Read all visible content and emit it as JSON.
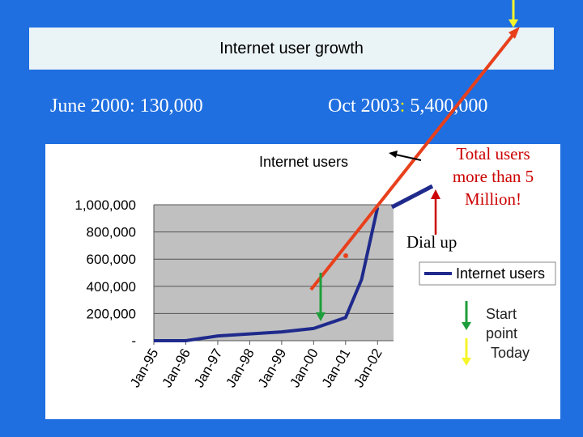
{
  "slide": {
    "title": "Internet user growth",
    "note_left": "June 2000: 130,000",
    "note_right_prefix": "Oct 2003",
    "note_right_colon": ":",
    "note_right_value": " 5,400,000",
    "callout_total": "Total users more than 5 Million!",
    "callout_dialup": "Dial up",
    "key_start_line1": "Start",
    "key_start_line2": "point",
    "key_today": "Today"
  },
  "colors": {
    "background": "#1f6fe0",
    "series": "#1f2a8c",
    "plot_area": "#c0c0c0",
    "trend_arrow": "#e8401c",
    "start_marker": "#1e9e3a",
    "today_marker": "#f5f52a",
    "dialup_arrow": "#cc0000"
  },
  "chart_data": {
    "type": "line",
    "title": "Internet users",
    "x_ticks": [
      "Jan-95",
      "Jan-96",
      "Jan-97",
      "Jan-98",
      "Jan-99",
      "Jan-00",
      "Jan-01",
      "Jan-02"
    ],
    "y_ticks": [
      "-",
      "200,000",
      "400,000",
      "600,000",
      "800,000",
      "1,000,000"
    ],
    "ylim": [
      0,
      1000000
    ],
    "grid": true,
    "legend": "right",
    "series": [
      {
        "name": "Internet users",
        "points": [
          [
            "Jan-95",
            0
          ],
          [
            "Jan-96",
            0
          ],
          [
            "Jan-97",
            35000
          ],
          [
            "Jan-98",
            50000
          ],
          [
            "Jan-99",
            65000
          ],
          [
            "Jan-00",
            90000
          ],
          [
            "Jan-01",
            170000
          ],
          [
            "Jul-01",
            450000
          ],
          [
            "Jan-02",
            980000
          ]
        ]
      }
    ]
  }
}
